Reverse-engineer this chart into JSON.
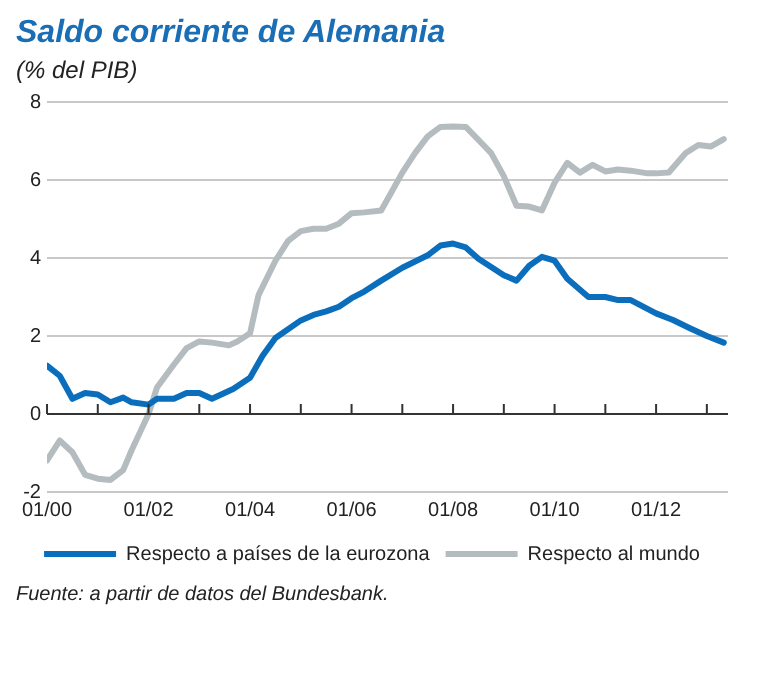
{
  "chart_data": {
    "type": "line",
    "title": "Saldo corriente de Alemania",
    "subtitle": "(% del PIB)",
    "xlim": [
      "2000-01",
      "2013-06"
    ],
    "xticks": [
      {
        "value": "2000-01",
        "label": "01/00"
      },
      {
        "value": "2001-01",
        "label": null
      },
      {
        "value": "2002-01",
        "label": "01/02"
      },
      {
        "value": "2003-01",
        "label": null
      },
      {
        "value": "2004-01",
        "label": "01/04"
      },
      {
        "value": "2005-01",
        "label": null
      },
      {
        "value": "2006-01",
        "label": "01/06"
      },
      {
        "value": "2007-01",
        "label": null
      },
      {
        "value": "2008-01",
        "label": "01/08"
      },
      {
        "value": "2009-01",
        "label": null
      },
      {
        "value": "2010-01",
        "label": "01/10"
      },
      {
        "value": "2011-01",
        "label": null
      },
      {
        "value": "2012-01",
        "label": "01/12"
      },
      {
        "value": "2013-01",
        "label": null
      }
    ],
    "ylim": [
      -2,
      8
    ],
    "yticks": [
      -2,
      0,
      2,
      4,
      6,
      8
    ],
    "grid": "y",
    "legend": "bottom",
    "marker": "none",
    "line_style": "solid",
    "series": [
      {
        "name": "Respecto a países de la eurozona",
        "color": "#0a6ebd",
        "x": [
          "2000-01",
          "2000-04",
          "2000-07",
          "2000-10",
          "2001-01",
          "2001-04",
          "2001-07",
          "2001-09",
          "2002-01",
          "2002-03",
          "2002-07",
          "2002-10",
          "2003-01",
          "2003-04",
          "2003-09",
          "2004-01",
          "2004-04",
          "2004-07",
          "2005-01",
          "2005-04",
          "2005-07",
          "2005-10",
          "2006-01",
          "2006-04",
          "2006-08",
          "2007-01",
          "2007-07",
          "2007-10",
          "2008-01",
          "2008-04",
          "2008-07",
          "2009-01",
          "2009-04",
          "2009-07",
          "2009-10",
          "2010-01",
          "2010-04",
          "2010-09",
          "2011-01",
          "2011-04",
          "2011-07",
          "2012-01",
          "2012-05",
          "2012-09",
          "2013-01",
          "2013-05"
        ],
        "values": [
          1.24,
          0.98,
          0.39,
          0.54,
          0.5,
          0.3,
          0.42,
          0.3,
          0.24,
          0.39,
          0.39,
          0.54,
          0.54,
          0.39,
          0.64,
          0.93,
          1.5,
          1.95,
          2.4,
          2.54,
          2.63,
          2.75,
          2.97,
          3.14,
          3.42,
          3.75,
          4.07,
          4.32,
          4.37,
          4.27,
          3.98,
          3.56,
          3.42,
          3.8,
          4.03,
          3.93,
          3.47,
          3.0,
          3.0,
          2.92,
          2.92,
          2.58,
          2.41,
          2.2,
          2.0,
          1.83
        ]
      },
      {
        "name": "Respecto al mundo",
        "color": "#b4bcc0",
        "x": [
          "2000-01",
          "2000-04",
          "2000-07",
          "2000-10",
          "2001-01",
          "2001-04",
          "2001-07",
          "2001-09",
          "2002-01",
          "2002-03",
          "2002-07",
          "2002-10",
          "2003-01",
          "2003-04",
          "2003-08",
          "2003-10",
          "2004-01",
          "2004-03",
          "2004-07",
          "2004-10",
          "2005-01",
          "2005-04",
          "2005-07",
          "2005-10",
          "2006-01",
          "2006-04",
          "2006-08",
          "2006-10",
          "2007-01",
          "2007-04",
          "2007-07",
          "2007-10",
          "2008-01",
          "2008-04",
          "2008-07",
          "2008-10",
          "2009-01",
          "2009-04",
          "2009-07",
          "2009-10",
          "2010-01",
          "2010-04",
          "2010-07",
          "2010-10",
          "2011-01",
          "2011-04",
          "2011-07",
          "2011-11",
          "2012-01",
          "2012-04",
          "2012-08",
          "2012-11",
          "2013-02",
          "2013-05"
        ],
        "values": [
          -1.19,
          -0.68,
          -0.98,
          -1.56,
          -1.66,
          -1.69,
          -1.44,
          -0.93,
          0.0,
          0.68,
          1.27,
          1.69,
          1.86,
          1.83,
          1.76,
          1.86,
          2.07,
          3.05,
          3.93,
          4.44,
          4.69,
          4.75,
          4.75,
          4.88,
          5.15,
          5.17,
          5.22,
          5.6,
          6.19,
          6.69,
          7.12,
          7.36,
          7.37,
          7.36,
          7.03,
          6.69,
          6.1,
          5.34,
          5.32,
          5.22,
          5.93,
          6.44,
          6.19,
          6.39,
          6.22,
          6.27,
          6.24,
          6.17,
          6.17,
          6.19,
          6.69,
          6.9,
          6.86,
          7.05
        ]
      }
    ],
    "annotations": [
      "Fuente: a partir de datos del Bundesbank."
    ]
  }
}
